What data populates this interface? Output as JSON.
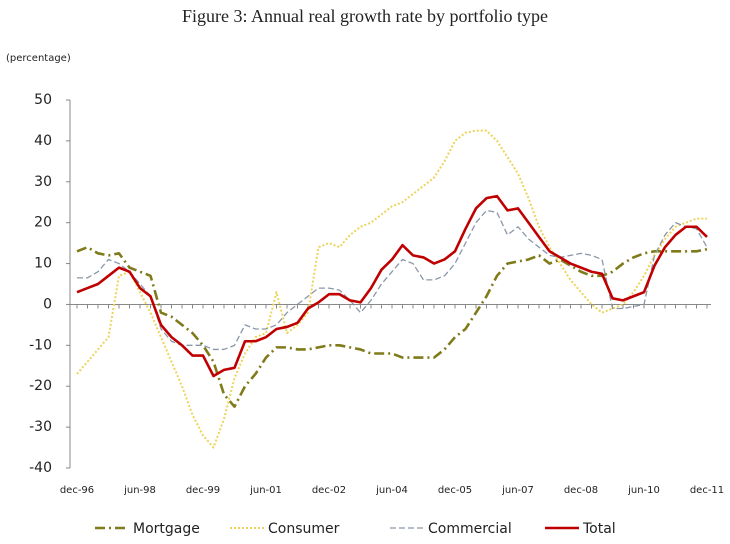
{
  "chart_data": {
    "type": "line",
    "title": "Figure 3: Annual real growth rate by portfolio type",
    "y_label": "(percentage)",
    "categories": [
      "dec-96",
      null,
      null,
      null,
      null,
      null,
      "jun-98",
      null,
      null,
      null,
      null,
      null,
      "dec-99",
      null,
      null,
      null,
      null,
      null,
      "jun-01",
      null,
      null,
      null,
      null,
      null,
      "dec-02",
      null,
      null,
      null,
      null,
      null,
      "jun-04",
      null,
      null,
      null,
      null,
      null,
      "dec-05",
      null,
      null,
      null,
      null,
      null,
      "jun-07",
      null,
      null,
      null,
      null,
      null,
      "dec-08",
      null,
      null,
      null,
      null,
      null,
      "jun-10",
      null,
      null,
      null,
      null,
      null,
      "dec-11"
    ],
    "series": [
      {
        "name": "Mortgage",
        "color": "#7f7a1a",
        "style": "dashdot",
        "values": [
          13,
          14,
          12.5,
          12,
          12.5,
          9,
          8,
          7,
          -2,
          -3,
          -5,
          -7,
          -10,
          -14,
          -22,
          -25,
          -20,
          -17,
          -13,
          -10.5,
          -10.5,
          -11,
          -11,
          -10.5,
          -10,
          -10,
          -10.5,
          -11,
          -12,
          -12,
          -12,
          -13,
          -13,
          -13,
          -13,
          -11,
          -8,
          -6,
          -2,
          2,
          7,
          10,
          10.5,
          11,
          12,
          10,
          11,
          9.5,
          8,
          7,
          7,
          8,
          10,
          11.5,
          12.5,
          13,
          13,
          13,
          13,
          13,
          13.5
        ]
      },
      {
        "name": "Consumer",
        "color": "#ecd45a",
        "style": "dotted",
        "values": [
          -17,
          -14,
          -11,
          -8,
          7,
          8,
          3,
          -2,
          -8,
          -14,
          -20,
          -27,
          -32,
          -35,
          -28,
          -18,
          -12,
          -8,
          -7,
          3,
          -7,
          -5,
          -2,
          14,
          15,
          14,
          17,
          19,
          20,
          22,
          24,
          25,
          27,
          29,
          31,
          35,
          40,
          42,
          42.5,
          42.5,
          40,
          36,
          32,
          26,
          19,
          14,
          10,
          6,
          3,
          0,
          -2,
          -1,
          0,
          3,
          7,
          12,
          16,
          19,
          20,
          21,
          21
        ]
      },
      {
        "name": "Commercial",
        "color": "#8a97a8",
        "style": "dashed",
        "values": [
          6.5,
          6.5,
          8,
          11,
          10,
          8,
          5,
          2,
          -6,
          -9,
          -10,
          -10,
          -10,
          -11,
          -11,
          -10,
          -5,
          -6,
          -6,
          -5,
          -2,
          0,
          2,
          4,
          4,
          3.5,
          1,
          -2,
          1,
          5,
          8,
          11,
          10,
          6,
          6,
          7,
          10,
          15,
          20,
          23,
          22.5,
          17,
          19,
          16,
          14,
          12,
          11.5,
          12,
          12.5,
          12,
          11,
          -1,
          -1,
          -0.5,
          0,
          12,
          17,
          20,
          19,
          18.5,
          14
        ]
      },
      {
        "name": "Total",
        "color": "#c00000",
        "style": "solid",
        "values": [
          3,
          4,
          5,
          7,
          9,
          8,
          4,
          2,
          -5,
          -8,
          -10,
          -12.5,
          -12.5,
          -17.5,
          -16,
          -15.5,
          -9,
          -9,
          -8,
          -6,
          -5.5,
          -4.5,
          -1,
          0.5,
          2.5,
          2.5,
          1,
          0.5,
          4,
          8.5,
          11,
          14.5,
          12,
          11.5,
          10,
          11,
          13,
          18.5,
          23.5,
          26,
          26.5,
          23,
          23.5,
          20,
          16.5,
          13,
          11.5,
          10,
          9,
          8,
          7.5,
          1.5,
          1,
          2,
          3,
          9.5,
          14,
          17,
          19,
          19,
          16.5
        ]
      }
    ],
    "ylim": [
      -40,
      50
    ],
    "yticks": [
      -40,
      -30,
      -20,
      -10,
      0,
      10,
      20,
      30,
      40,
      50
    ],
    "legend": "bottom"
  }
}
